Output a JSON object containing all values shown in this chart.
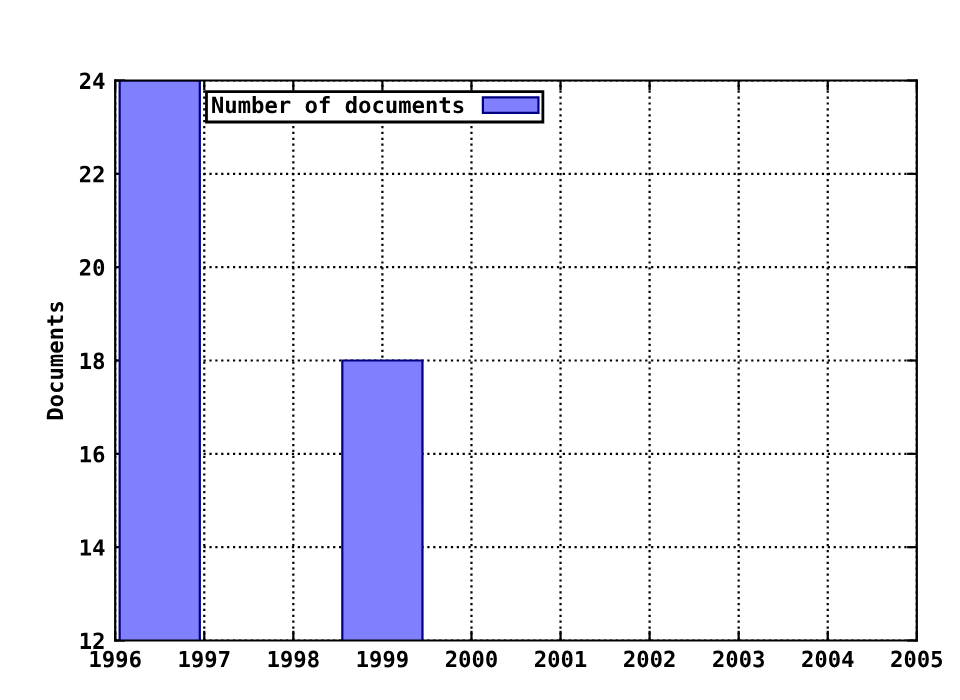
{
  "chart_data": {
    "type": "bar",
    "ylabel": "Documents",
    "x": [
      1996.5,
      1999
    ],
    "series": [
      {
        "name": "Number of documents",
        "color": "#8080ff",
        "values": [
          24,
          18
        ]
      }
    ],
    "xlim": [
      1996,
      2005
    ],
    "xticks": [
      1996,
      1997,
      1998,
      1999,
      2000,
      2001,
      2002,
      2003,
      2004,
      2005
    ],
    "ylim": [
      12,
      24
    ],
    "yticks": [
      12,
      14,
      16,
      18,
      20,
      22,
      24
    ],
    "grid": true,
    "legend": "top left"
  }
}
